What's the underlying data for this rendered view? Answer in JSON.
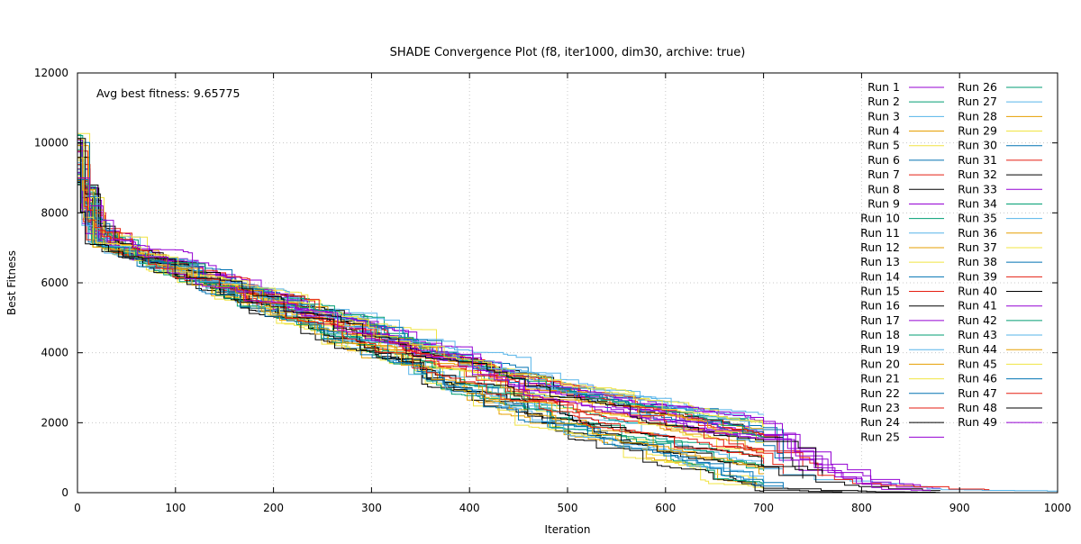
{
  "chart_data": {
    "type": "line",
    "title": "SHADE Convergence Plot (f8, iter1000, dim30, archive: true)",
    "xlabel": "Iteration",
    "ylabel": "Best Fitness",
    "xlim": [
      0,
      1000
    ],
    "ylim": [
      0,
      12000
    ],
    "xticks": [
      0,
      100,
      200,
      300,
      400,
      500,
      600,
      700,
      800,
      900,
      1000
    ],
    "yticks": [
      0,
      2000,
      4000,
      6000,
      8000,
      10000,
      12000
    ],
    "xtick_labels": [
      "0",
      "100",
      "200",
      "300",
      "400",
      "500",
      "600",
      "700",
      "800",
      "900",
      "1000"
    ],
    "ytick_labels": [
      "0",
      "2000",
      "4000",
      "6000",
      "8000",
      "10000",
      "12000"
    ],
    "grid": true,
    "legend_position": "top-right",
    "annotation": "Avg best fitness: 9.65775",
    "series_colors": [
      "#9400d3",
      "#009e73",
      "#56b4e9",
      "#e69f00",
      "#f0e442",
      "#0072b2",
      "#e51e10",
      "#000000"
    ],
    "series": [
      {
        "name": "Run 1",
        "end_x": 880
      },
      {
        "name": "Run 2",
        "end_x": 680
      },
      {
        "name": "Run 3",
        "end_x": 700
      },
      {
        "name": "Run 4",
        "end_x": 690
      },
      {
        "name": "Run 5",
        "end_x": 660
      },
      {
        "name": "Run 6",
        "end_x": 720
      },
      {
        "name": "Run 7",
        "end_x": 740
      },
      {
        "name": "Run 8",
        "end_x": 880
      },
      {
        "name": "Run 9",
        "end_x": 760
      },
      {
        "name": "Run 10",
        "end_x": 700
      },
      {
        "name": "Run 11",
        "end_x": 1000
      },
      {
        "name": "Run 12",
        "end_x": 690
      },
      {
        "name": "Run 13",
        "end_x": 650
      },
      {
        "name": "Run 14",
        "end_x": 720
      },
      {
        "name": "Run 15",
        "end_x": 700
      },
      {
        "name": "Run 16",
        "end_x": 760
      },
      {
        "name": "Run 17",
        "end_x": 800
      },
      {
        "name": "Run 18",
        "end_x": 700
      },
      {
        "name": "Run 19",
        "end_x": 680
      },
      {
        "name": "Run 20",
        "end_x": 690
      },
      {
        "name": "Run 21",
        "end_x": 670
      },
      {
        "name": "Run 22",
        "end_x": 700
      },
      {
        "name": "Run 23",
        "end_x": 720
      },
      {
        "name": "Run 24",
        "end_x": 780
      },
      {
        "name": "Run 25",
        "end_x": 830
      },
      {
        "name": "Run 26",
        "end_x": 690
      },
      {
        "name": "Run 27",
        "end_x": 700
      },
      {
        "name": "Run 28",
        "end_x": 680
      },
      {
        "name": "Run 29",
        "end_x": 660
      },
      {
        "name": "Run 30",
        "end_x": 720
      },
      {
        "name": "Run 31",
        "end_x": 930
      },
      {
        "name": "Run 32",
        "end_x": 740
      },
      {
        "name": "Run 33",
        "end_x": 860
      },
      {
        "name": "Run 34",
        "end_x": 700
      },
      {
        "name": "Run 35",
        "end_x": 690
      },
      {
        "name": "Run 36",
        "end_x": 670
      },
      {
        "name": "Run 37",
        "end_x": 680
      },
      {
        "name": "Run 38",
        "end_x": 720
      },
      {
        "name": "Run 39",
        "end_x": 700
      },
      {
        "name": "Run 40",
        "end_x": 880
      },
      {
        "name": "Run 41",
        "end_x": 760
      },
      {
        "name": "Run 42",
        "end_x": 690
      },
      {
        "name": "Run 43",
        "end_x": 700
      },
      {
        "name": "Run 44",
        "end_x": 680
      },
      {
        "name": "Run 45",
        "end_x": 660
      },
      {
        "name": "Run 46",
        "end_x": 720
      },
      {
        "name": "Run 47",
        "end_x": 700
      },
      {
        "name": "Run 48",
        "end_x": 760
      },
      {
        "name": "Run 49",
        "end_x": 870
      }
    ]
  }
}
